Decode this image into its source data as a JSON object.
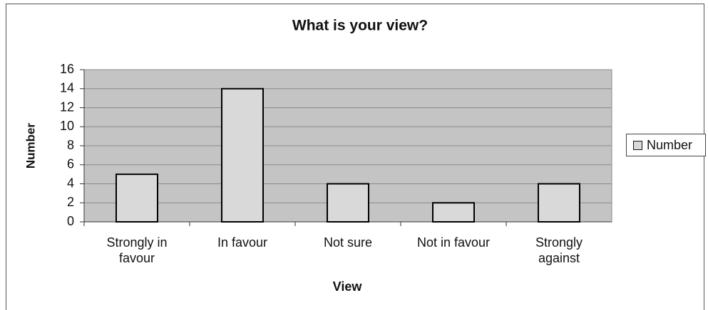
{
  "chart_data": {
    "type": "bar",
    "title": "What is your view?",
    "x_label": "View",
    "y_label": "Number",
    "categories": [
      "Strongly in favour",
      "In favour",
      "Not sure",
      "Not in favour",
      "Strongly against"
    ],
    "series": [
      {
        "name": "Number",
        "color": "#d9d9d9",
        "values": [
          5,
          14,
          4,
          2,
          4
        ]
      }
    ],
    "ylim": [
      0,
      16
    ],
    "yticks": [
      0,
      2,
      4,
      6,
      8,
      10,
      12,
      14,
      16
    ],
    "grid": true,
    "legend": "right"
  }
}
